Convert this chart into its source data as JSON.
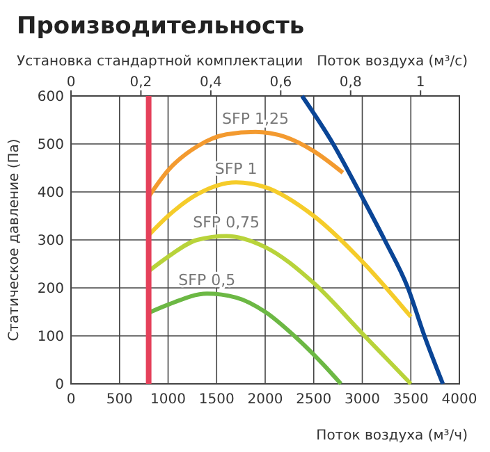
{
  "chart_data": {
    "type": "line",
    "title": "Производительность",
    "subtitle": "Установка стандартной комплектации",
    "xlabel": "Поток воздуха (м³/ч)",
    "x2label": "Поток воздуха (м³/с)",
    "ylabel": "Статическое давление (Па)",
    "xlim": [
      0,
      4000
    ],
    "xticks": [
      0,
      500,
      1000,
      1500,
      2000,
      2500,
      3000,
      3500,
      4000
    ],
    "x2lim": [
      0,
      1.1111
    ],
    "x2ticks": [
      0,
      {
        "value": 0.2,
        "label": "0,2"
      },
      {
        "value": 0.4,
        "label": "0,4"
      },
      {
        "value": 0.6,
        "label": "0,6"
      },
      {
        "value": 0.8,
        "label": "0,8"
      },
      1
    ],
    "ylim": [
      0,
      600
    ],
    "yticks": [
      0,
      100,
      200,
      300,
      400,
      500,
      600
    ],
    "grid": true,
    "line_style": "solid",
    "marker": "none",
    "ref_lines": [
      {
        "axis": "x",
        "value": 800,
        "color": "#e5405a"
      }
    ],
    "series": [
      {
        "name": "SFP 1,25",
        "color": "#f39a2f",
        "x": [
          800,
          1000,
          1300,
          1600,
          1900,
          2200,
          2500,
          2800
        ],
        "values": [
          390,
          445,
          495,
          520,
          525,
          515,
          485,
          440
        ]
      },
      {
        "name": "SFP 1",
        "color": "#f5cc2a",
        "x": [
          800,
          1000,
          1300,
          1700,
          2000,
          2500,
          3000,
          3500
        ],
        "values": [
          310,
          350,
          395,
          420,
          410,
          350,
          255,
          140
        ]
      },
      {
        "name": "SFP 0,75",
        "color": "#b8d33a",
        "x": [
          800,
          1000,
          1300,
          1600,
          2000,
          2500,
          3000,
          3500
        ],
        "values": [
          235,
          265,
          300,
          308,
          285,
          210,
          105,
          0
        ]
      },
      {
        "name": "SFP 0,5",
        "color": "#6cb844",
        "x": [
          800,
          1000,
          1400,
          1700,
          2000,
          2300,
          2600,
          2780
        ],
        "values": [
          148,
          165,
          188,
          180,
          150,
          100,
          40,
          0
        ]
      },
      {
        "color": "#0a4596",
        "x": [
          2380,
          2700,
          2970,
          3230,
          3470,
          3640,
          3830
        ],
        "values": [
          600,
          500,
          400,
          300,
          200,
          100,
          0
        ]
      }
    ]
  }
}
